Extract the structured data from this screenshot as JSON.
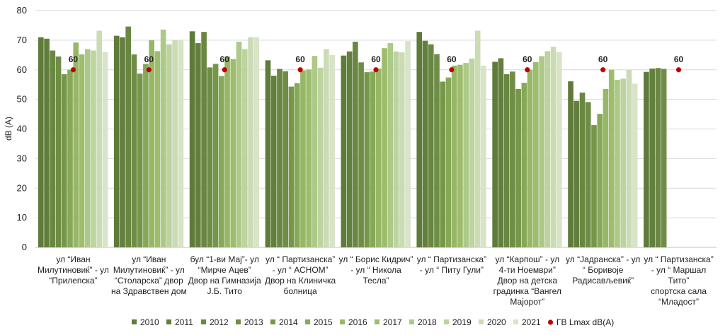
{
  "chart_data": {
    "type": "bar",
    "ylabel": "dB (A)",
    "ylim": [
      0,
      80
    ],
    "yticks": [
      0,
      10,
      20,
      30,
      40,
      50,
      60,
      70,
      80
    ],
    "grid": true,
    "legend_position": "bottom",
    "limit_label": "60",
    "categories": [
      [
        "ул “Иван",
        "Милутиновиќ” - ул",
        "“Прилепска”"
      ],
      [
        "ул “Иван",
        "Милутиновиќ” - ул",
        "“Столарска” двор",
        "на Здравствен дом"
      ],
      [
        "бул “1-ви Мај”- ул",
        "“Мирче Ацев”",
        "Двор на Гимназија",
        "Ј.Б. Тито"
      ],
      [
        "ул “ Партизанска”",
        "- ул “ АСНОМ”",
        "Двор на Клиничка",
        "болница"
      ],
      [
        "ул “ Борис Кидрич”",
        "- ул “ Никола",
        "Тесла”"
      ],
      [
        "ул “ Партизанска”",
        "- ул “ Питу Гули”"
      ],
      [
        "ул “Карпош” - ул",
        "4-ти Ноември”",
        "Двор на детска",
        "градинка “Вангел",
        "Мајорот”"
      ],
      [
        "ул “Јадранска” - ул",
        "“ Боривоје",
        "Радисављевиќ”"
      ],
      [
        "ул “ Партизанска”",
        "- ул “ Маршал",
        "Тито”",
        "спортска сала",
        "“Младост”"
      ]
    ],
    "series": [
      {
        "name": "2010",
        "color": "#5e7b3a",
        "values": [
          71,
          71.5,
          73,
          63.2,
          64.8,
          72.8,
          62.7,
          56.1,
          59.3
        ]
      },
      {
        "name": "2011",
        "color": "#637f3d",
        "values": [
          70.5,
          71,
          69,
          58,
          66.2,
          69.8,
          63.9,
          49.5,
          60.4
        ]
      },
      {
        "name": "2012",
        "color": "#698742",
        "values": [
          66.5,
          74.6,
          72.8,
          60.3,
          69.5,
          68.6,
          58.5,
          52.3,
          60.6
        ]
      },
      {
        "name": "2013",
        "color": "#6f8d46",
        "values": [
          64.5,
          65.2,
          60.8,
          59.5,
          62.5,
          65.3,
          59.4,
          49.1,
          60.3
        ]
      },
      {
        "name": "2014",
        "color": "#76964a",
        "values": [
          58.5,
          58.7,
          62,
          54.3,
          59.2,
          56,
          53.5,
          41.3,
          null
        ]
      },
      {
        "name": "2015",
        "color": "#86a858",
        "values": [
          60,
          62,
          57.9,
          55.5,
          59.4,
          57.4,
          55.6,
          45.1,
          null
        ]
      },
      {
        "name": "2016",
        "color": "#97b766",
        "values": [
          69.2,
          70,
          64.5,
          59.8,
          60.4,
          61.4,
          60,
          53.5,
          null
        ]
      },
      {
        "name": "2017",
        "color": "#9ebd6c",
        "values": [
          65.2,
          66.3,
          63.6,
          60.1,
          67.3,
          61.7,
          62.6,
          60,
          null
        ]
      },
      {
        "name": "2018",
        "color": "#adc989",
        "values": [
          67,
          73.6,
          69.5,
          64.7,
          69,
          62.3,
          64.6,
          56.6,
          null
        ]
      },
      {
        "name": "2019",
        "color": "#bdd3a0",
        "values": [
          66.5,
          68.6,
          67,
          60.7,
          66.2,
          63.8,
          66.3,
          57,
          null
        ]
      },
      {
        "name": "2020",
        "color": "#cbdcb5",
        "values": [
          73.2,
          70,
          71,
          67,
          65.9,
          73.2,
          67.8,
          60,
          null
        ]
      },
      {
        "name": "2021",
        "color": "#d8e4c7",
        "values": [
          66,
          70,
          71,
          65,
          69.7,
          61.4,
          66,
          55.3,
          null
        ]
      }
    ],
    "limit_series": {
      "name": "ГВ Lmax dB(A)",
      "color": "#c00000",
      "values": [
        60,
        60,
        60,
        60,
        60,
        60,
        60,
        60,
        60
      ]
    }
  }
}
